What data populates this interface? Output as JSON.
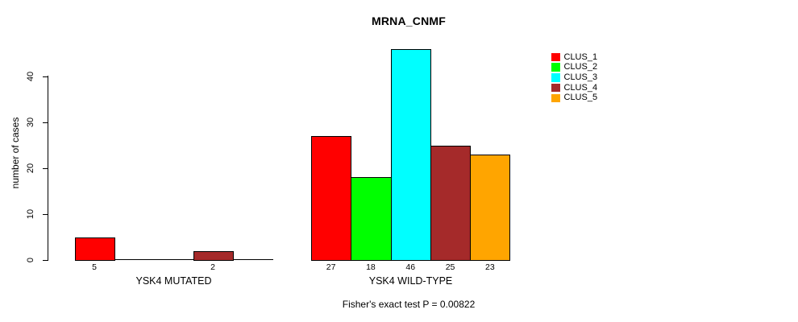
{
  "chart_data": {
    "type": "bar",
    "title": "MRNA_CNMF",
    "ylabel": "number of cases",
    "ylim": [
      0,
      46
    ],
    "yticks": [
      0,
      10,
      20,
      30,
      40
    ],
    "grid": false,
    "legend_position": "top-right",
    "series": [
      {
        "name": "CLUS_1",
        "color": "#FF0000"
      },
      {
        "name": "CLUS_2",
        "color": "#00FF00"
      },
      {
        "name": "CLUS_3",
        "color": "#00FFFF"
      },
      {
        "name": "CLUS_4",
        "color": "#A52A2A"
      },
      {
        "name": "CLUS_5",
        "color": "#FFA500"
      }
    ],
    "groups": [
      {
        "label": "YSK4 MUTATED",
        "values": [
          5,
          0,
          0,
          2,
          0
        ]
      },
      {
        "label": "YSK4 WILD-TYPE",
        "values": [
          27,
          18,
          46,
          25,
          23
        ]
      }
    ],
    "value_label_rule": "value printed under each nonzero bar",
    "annotation": "Fisher's exact test P = 0.00822",
    "axis_color": "#000000",
    "background_color": "#FFFFFF"
  }
}
